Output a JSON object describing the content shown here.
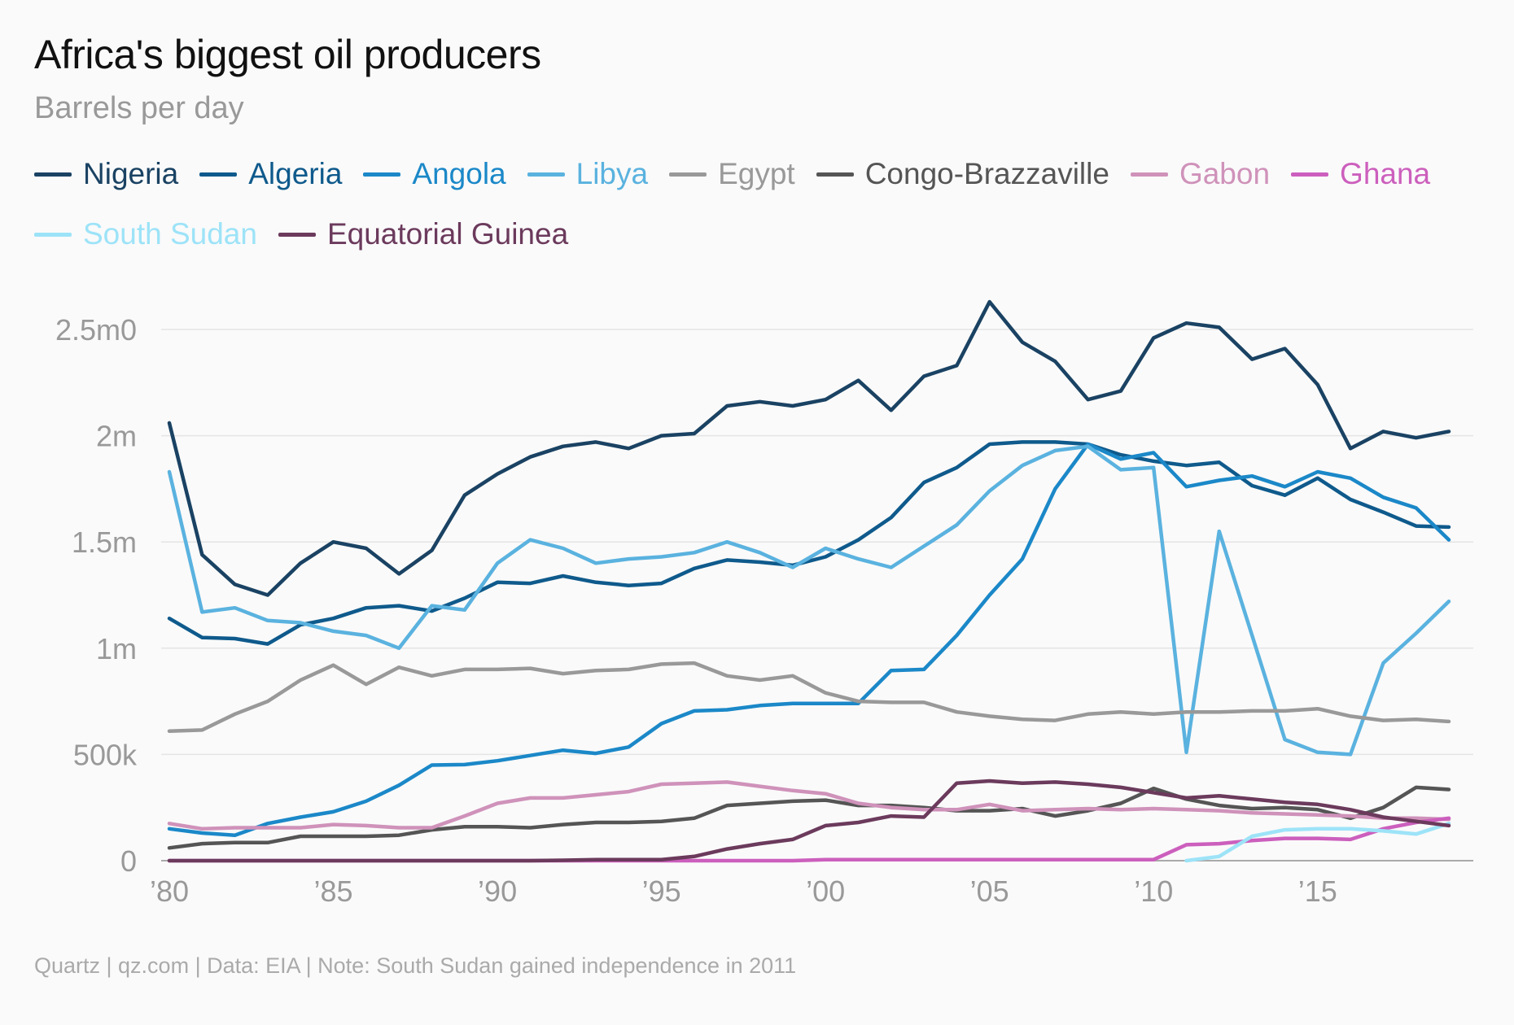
{
  "chart_data": {
    "type": "line",
    "title": "Africa's biggest oil producers",
    "subtitle": "Barrels per day",
    "footer": "Quartz | qz.com | Data: EIA | Note: South Sudan gained independence in 2011",
    "x": [
      1980,
      1981,
      1982,
      1983,
      1984,
      1985,
      1986,
      1987,
      1988,
      1989,
      1990,
      1991,
      1992,
      1993,
      1994,
      1995,
      1996,
      1997,
      1998,
      1999,
      2000,
      2001,
      2002,
      2003,
      2004,
      2005,
      2006,
      2007,
      2008,
      2009,
      2010,
      2011,
      2012,
      2013,
      2014,
      2015,
      2016,
      2017,
      2018,
      2019
    ],
    "xticks": [
      {
        "value": 1980,
        "label": "’80"
      },
      {
        "value": 1985,
        "label": "’85"
      },
      {
        "value": 1990,
        "label": "’90"
      },
      {
        "value": 1995,
        "label": "’95"
      },
      {
        "value": 2000,
        "label": "’00"
      },
      {
        "value": 2005,
        "label": "’05"
      },
      {
        "value": 2010,
        "label": "’10"
      },
      {
        "value": 2015,
        "label": "’15"
      }
    ],
    "yticks": [
      {
        "value": 0,
        "label": "0"
      },
      {
        "value": 500000,
        "label": "500k"
      },
      {
        "value": 1000000,
        "label": "1m"
      },
      {
        "value": 1500000,
        "label": "1.5m"
      },
      {
        "value": 2000000,
        "label": "2m"
      },
      {
        "value": 2500000,
        "label": "2.5m0"
      }
    ],
    "xlim": [
      1980,
      2019
    ],
    "ylim": [
      0,
      2500000
    ],
    "grid": true,
    "legend_position": "top",
    "series": [
      {
        "name": "Nigeria",
        "color": "#1a4263",
        "values": [
          2060000,
          1440000,
          1300000,
          1250000,
          1400000,
          1500000,
          1470000,
          1350000,
          1460000,
          1720000,
          1820000,
          1900000,
          1950000,
          1970000,
          1940000,
          2000000,
          2010000,
          2140000,
          2160000,
          2140000,
          2170000,
          2260000,
          2120000,
          2280000,
          2330000,
          2630000,
          2440000,
          2350000,
          2170000,
          2210000,
          2460000,
          2530000,
          2510000,
          2360000,
          2410000,
          2240000,
          1940000,
          2020000,
          1990000,
          2020000
        ]
      },
      {
        "name": "Algeria",
        "color": "#0f5a8c",
        "values": [
          1140000,
          1050000,
          1045000,
          1020000,
          1110000,
          1140000,
          1190000,
          1200000,
          1175000,
          1235000,
          1310000,
          1305000,
          1340000,
          1310000,
          1295000,
          1305000,
          1375000,
          1415000,
          1405000,
          1390000,
          1430000,
          1510000,
          1615000,
          1780000,
          1850000,
          1960000,
          1970000,
          1970000,
          1960000,
          1910000,
          1880000,
          1860000,
          1875000,
          1765000,
          1720000,
          1800000,
          1700000,
          1640000,
          1575000,
          1570000
        ]
      },
      {
        "name": "Angola",
        "color": "#1b88c8",
        "values": [
          150000,
          130000,
          120000,
          175000,
          205000,
          230000,
          280000,
          355000,
          450000,
          452000,
          470000,
          495000,
          520000,
          505000,
          535000,
          645000,
          705000,
          710000,
          730000,
          740000,
          740000,
          740000,
          895000,
          900000,
          1060000,
          1250000,
          1420000,
          1750000,
          1960000,
          1890000,
          1920000,
          1760000,
          1790000,
          1810000,
          1760000,
          1830000,
          1800000,
          1710000,
          1660000,
          1510000
        ]
      },
      {
        "name": "Libya",
        "color": "#5ab2df",
        "values": [
          1830000,
          1170000,
          1190000,
          1130000,
          1120000,
          1080000,
          1060000,
          1000000,
          1200000,
          1180000,
          1400000,
          1510000,
          1470000,
          1400000,
          1420000,
          1430000,
          1450000,
          1500000,
          1450000,
          1380000,
          1470000,
          1420000,
          1380000,
          1480000,
          1580000,
          1740000,
          1860000,
          1930000,
          1950000,
          1840000,
          1850000,
          510000,
          1550000,
          1060000,
          570000,
          510000,
          500000,
          930000,
          1070000,
          1220000
        ]
      },
      {
        "name": "Egypt",
        "color": "#999999",
        "values": [
          610000,
          615000,
          690000,
          750000,
          850000,
          920000,
          830000,
          910000,
          870000,
          900000,
          900000,
          905000,
          880000,
          895000,
          900000,
          925000,
          930000,
          870000,
          850000,
          870000,
          790000,
          750000,
          745000,
          745000,
          700000,
          680000,
          665000,
          660000,
          690000,
          700000,
          690000,
          700000,
          700000,
          705000,
          705000,
          715000,
          680000,
          660000,
          665000,
          655000
        ]
      },
      {
        "name": "Congo-Brazzaville",
        "color": "#555555",
        "values": [
          60000,
          80000,
          85000,
          85000,
          115000,
          115000,
          115000,
          120000,
          145000,
          160000,
          160000,
          155000,
          170000,
          180000,
          180000,
          185000,
          200000,
          260000,
          270000,
          280000,
          285000,
          260000,
          260000,
          250000,
          235000,
          235000,
          245000,
          210000,
          235000,
          270000,
          340000,
          290000,
          260000,
          245000,
          250000,
          240000,
          200000,
          250000,
          345000,
          335000
        ]
      },
      {
        "name": "Gabon",
        "color": "#cf92ba",
        "values": [
          175000,
          150000,
          155000,
          155000,
          155000,
          170000,
          165000,
          155000,
          155000,
          210000,
          270000,
          295000,
          295000,
          310000,
          325000,
          360000,
          365000,
          370000,
          350000,
          330000,
          315000,
          270000,
          250000,
          240000,
          240000,
          265000,
          235000,
          240000,
          245000,
          240000,
          245000,
          240000,
          235000,
          225000,
          220000,
          215000,
          210000,
          200000,
          200000,
          195000
        ]
      },
      {
        "name": "Ghana",
        "color": "#cc5fbd",
        "values": [
          0,
          0,
          0,
          0,
          0,
          0,
          0,
          0,
          0,
          0,
          0,
          0,
          0,
          0,
          0,
          0,
          0,
          0,
          0,
          0,
          5000,
          5000,
          5000,
          5000,
          5000,
          5000,
          5000,
          5000,
          5000,
          5000,
          5000,
          75000,
          80000,
          95000,
          105000,
          105000,
          100000,
          150000,
          180000,
          200000
        ]
      },
      {
        "name": "South Sudan",
        "color": "#9de3f8",
        "values": [
          null,
          null,
          null,
          null,
          null,
          null,
          null,
          null,
          null,
          null,
          null,
          null,
          null,
          null,
          null,
          null,
          null,
          null,
          null,
          null,
          null,
          null,
          null,
          null,
          null,
          null,
          null,
          null,
          null,
          null,
          null,
          0,
          20000,
          115000,
          145000,
          150000,
          150000,
          140000,
          125000,
          175000
        ]
      },
      {
        "name": "Equatorial Guinea",
        "color": "#6b3a5c",
        "values": [
          0,
          0,
          0,
          0,
          0,
          0,
          0,
          0,
          0,
          0,
          0,
          0,
          2000,
          5000,
          5000,
          5000,
          20000,
          55000,
          80000,
          100000,
          165000,
          180000,
          210000,
          205000,
          365000,
          375000,
          365000,
          370000,
          360000,
          345000,
          320000,
          295000,
          305000,
          290000,
          275000,
          265000,
          240000,
          205000,
          185000,
          165000
        ]
      }
    ]
  }
}
